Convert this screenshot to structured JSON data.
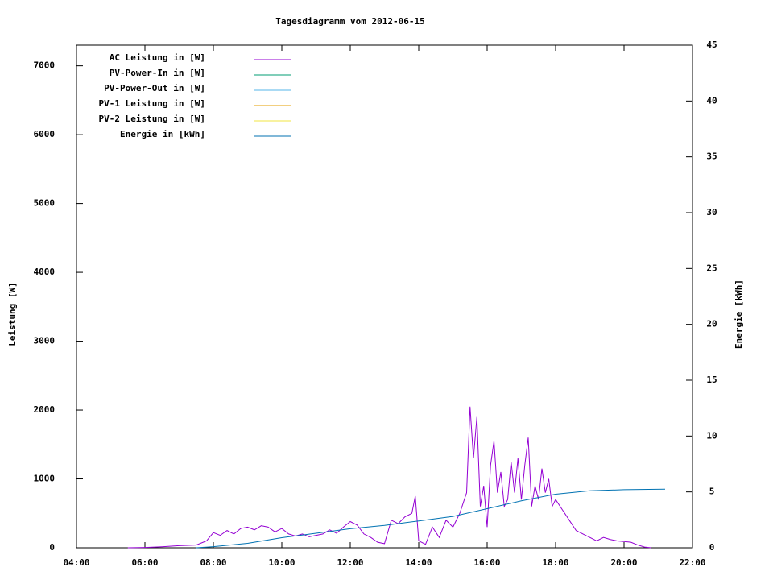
{
  "chart_data": {
    "type": "line",
    "title": "Tagesdiagramm vom 2012-06-15",
    "y_label": "Leistung [W]",
    "y2_label": "Energie [kWh]",
    "xlim": [
      4,
      22
    ],
    "xticks": [
      {
        "value": 4,
        "label": "04:00"
      },
      {
        "value": 6,
        "label": "06:00"
      },
      {
        "value": 8,
        "label": "08:00"
      },
      {
        "value": 10,
        "label": "10:00"
      },
      {
        "value": 12,
        "label": "12:00"
      },
      {
        "value": 14,
        "label": "14:00"
      },
      {
        "value": 16,
        "label": "16:00"
      },
      {
        "value": 18,
        "label": "18:00"
      },
      {
        "value": 20,
        "label": "20:00"
      },
      {
        "value": 22,
        "label": "22:00"
      }
    ],
    "ylim": [
      0,
      7300
    ],
    "yticks": [
      0,
      1000,
      2000,
      3000,
      4000,
      5000,
      6000,
      7000
    ],
    "y2lim": [
      0,
      45
    ],
    "y2ticks": [
      0,
      5,
      10,
      15,
      20,
      25,
      30,
      35,
      40,
      45
    ],
    "legend": "top-left",
    "series": [
      {
        "name": "AC Leistung in [W]",
        "color": "#9400d3",
        "x": [
          5.5,
          6,
          6.5,
          7,
          7.5,
          7.8,
          8,
          8.2,
          8.4,
          8.6,
          8.8,
          9,
          9.2,
          9.4,
          9.6,
          9.8,
          10,
          10.2,
          10.4,
          10.6,
          10.8,
          11,
          11.2,
          11.4,
          11.6,
          11.8,
          12,
          12.2,
          12.4,
          12.6,
          12.8,
          13,
          13.2,
          13.4,
          13.6,
          13.8,
          13.9,
          14,
          14.2,
          14.4,
          14.6,
          14.8,
          15,
          15.2,
          15.4,
          15.5,
          15.6,
          15.7,
          15.8,
          15.9,
          16,
          16.1,
          16.2,
          16.3,
          16.4,
          16.5,
          16.6,
          16.7,
          16.8,
          16.9,
          17,
          17.1,
          17.2,
          17.3,
          17.4,
          17.5,
          17.6,
          17.7,
          17.8,
          17.9,
          18,
          18.2,
          18.4,
          18.6,
          18.8,
          19,
          19.2,
          19.4,
          19.6,
          19.8,
          20,
          20.2,
          20.4,
          20.6,
          20.8
        ],
        "values": [
          0,
          5,
          15,
          30,
          40,
          100,
          220,
          180,
          250,
          200,
          280,
          300,
          260,
          320,
          300,
          230,
          280,
          200,
          170,
          200,
          160,
          180,
          200,
          260,
          210,
          300,
          380,
          330,
          200,
          150,
          80,
          60,
          400,
          350,
          450,
          500,
          750,
          100,
          50,
          300,
          150,
          400,
          300,
          500,
          800,
          2050,
          1300,
          1900,
          600,
          900,
          300,
          1200,
          1550,
          800,
          1100,
          600,
          700,
          1250,
          800,
          1300,
          700,
          1200,
          1600,
          600,
          900,
          700,
          1150,
          800,
          1000,
          600,
          700,
          550,
          400,
          250,
          200,
          150,
          100,
          150,
          120,
          100,
          90,
          80,
          40,
          10,
          0
        ]
      },
      {
        "name": "PV-Power-In in [W]",
        "color": "#009e73",
        "x": [],
        "values": []
      },
      {
        "name": "PV-Power-Out in [W]",
        "color": "#56b4e9",
        "x": [],
        "values": []
      },
      {
        "name": "PV-1 Leistung in [W]",
        "color": "#e69f00",
        "x": [],
        "values": []
      },
      {
        "name": "PV-2 Leistung in [W]",
        "color": "#f0e442",
        "x": [],
        "values": []
      },
      {
        "name": "Energie in [kWh]",
        "color": "#0072b2",
        "axis": "y2",
        "x": [
          7.5,
          8,
          9,
          10,
          11,
          12,
          13,
          14,
          15,
          16,
          17,
          17.5,
          18,
          19,
          20,
          21.2
        ],
        "values": [
          0,
          0.1,
          0.4,
          0.9,
          1.3,
          1.7,
          2.0,
          2.4,
          2.8,
          3.5,
          4.2,
          4.5,
          4.8,
          5.1,
          5.2,
          5.25
        ]
      }
    ]
  }
}
